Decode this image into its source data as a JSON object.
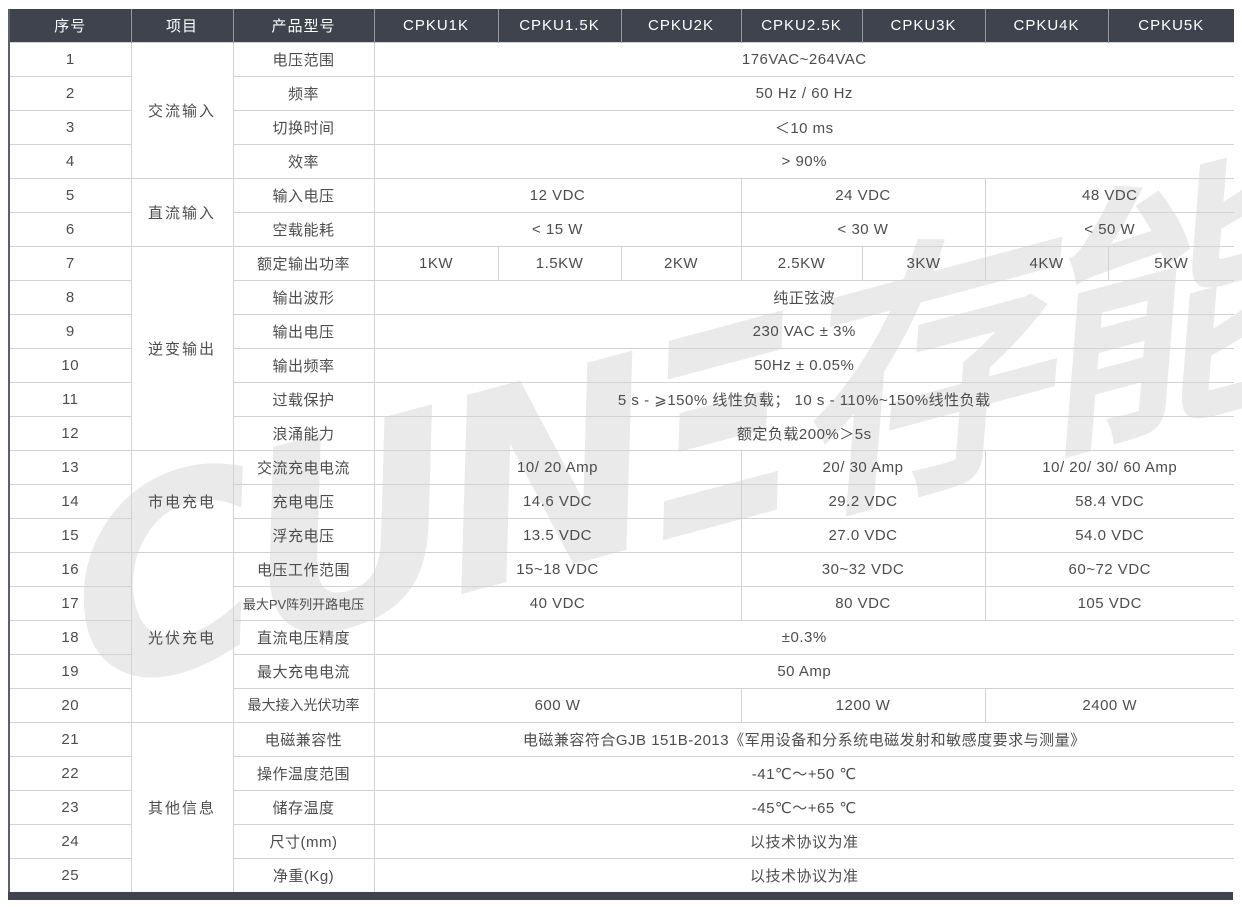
{
  "watermark": {
    "text": "CUNΞ存能"
  },
  "colors": {
    "header_bg": "#3e434e",
    "bottom_bar": "#3e434e",
    "grid_line": "#d2d2d2",
    "body_text": "#4d4d4d",
    "header_text": "#ffffff",
    "watermark": "#eaeaea"
  },
  "table": {
    "header": [
      "序号",
      "项目",
      "产品型号",
      "CPKU1K",
      "CPKU1.5K",
      "CPKU2K",
      "CPKU2.5K",
      "CPKU3K",
      "CPKU4K",
      "CPKU5K"
    ],
    "groups": [
      {
        "label": "交流输入",
        "rows": [
          1,
          4
        ]
      },
      {
        "label": "直流输入",
        "rows": [
          5,
          6
        ]
      },
      {
        "label": "逆变输出",
        "rows": [
          7,
          12
        ]
      },
      {
        "label": "市电充电",
        "rows": [
          13,
          15
        ]
      },
      {
        "label": "光伏充电",
        "rows": [
          16,
          20
        ]
      },
      {
        "label": "其他信息",
        "rows": [
          21,
          25
        ]
      }
    ],
    "rows": [
      {
        "num": "1",
        "item": "电压范围",
        "values": [
          {
            "text": "176VAC~264VAC",
            "span": 7
          }
        ]
      },
      {
        "num": "2",
        "item": "频率",
        "values": [
          {
            "text": "50 Hz / 60 Hz",
            "span": 7
          }
        ]
      },
      {
        "num": "3",
        "item": "切换时间",
        "values": [
          {
            "text": "＜10 ms",
            "span": 7
          }
        ]
      },
      {
        "num": "4",
        "item": "效率",
        "values": [
          {
            "text": "> 90%",
            "span": 7
          }
        ]
      },
      {
        "num": "5",
        "item": "输入电压",
        "values": [
          {
            "text": "12 VDC",
            "span": 3
          },
          {
            "text": "24 VDC",
            "span": 2
          },
          {
            "text": "48 VDC",
            "span": 2
          }
        ]
      },
      {
        "num": "6",
        "item": "空载能耗",
        "values": [
          {
            "text": "< 15 W",
            "span": 3
          },
          {
            "text": "< 30 W",
            "span": 2
          },
          {
            "text": "< 50 W",
            "span": 2
          }
        ]
      },
      {
        "num": "7",
        "item": "额定输出功率",
        "values": [
          {
            "text": "1KW",
            "span": 1
          },
          {
            "text": "1.5KW",
            "span": 1
          },
          {
            "text": "2KW",
            "span": 1
          },
          {
            "text": "2.5KW",
            "span": 1
          },
          {
            "text": "3KW",
            "span": 1
          },
          {
            "text": "4KW",
            "span": 1
          },
          {
            "text": "5KW",
            "span": 1
          }
        ]
      },
      {
        "num": "8",
        "item": "输出波形",
        "values": [
          {
            "text": "纯正弦波",
            "span": 7
          }
        ]
      },
      {
        "num": "9",
        "item": "输出电压",
        "values": [
          {
            "text": "230 VAC ± 3%",
            "span": 7
          }
        ]
      },
      {
        "num": "10",
        "item": "输出频率",
        "values": [
          {
            "text": "50Hz ± 0.05%",
            "span": 7
          }
        ]
      },
      {
        "num": "11",
        "item": "过载保护",
        "values": [
          {
            "text": "5 s - ⩾150% 线性负载；  10 s - 110%~150%线性负载",
            "span": 7
          }
        ]
      },
      {
        "num": "12",
        "item": "浪涌能力",
        "values": [
          {
            "text": "额定负载200%＞5s",
            "span": 7
          }
        ]
      },
      {
        "num": "13",
        "item": "交流充电电流",
        "values": [
          {
            "text": "10/ 20 Amp",
            "span": 3
          },
          {
            "text": "20/ 30 Amp",
            "span": 2
          },
          {
            "text": "10/ 20/ 30/ 60 Amp",
            "span": 2
          }
        ]
      },
      {
        "num": "14",
        "item": "充电电压",
        "values": [
          {
            "text": "14.6 VDC",
            "span": 3
          },
          {
            "text": "29.2 VDC",
            "span": 2
          },
          {
            "text": "58.4 VDC",
            "span": 2
          }
        ]
      },
      {
        "num": "15",
        "item": "浮充电压",
        "values": [
          {
            "text": "13.5 VDC",
            "span": 3
          },
          {
            "text": "27.0 VDC",
            "span": 2
          },
          {
            "text": "54.0 VDC",
            "span": 2
          }
        ]
      },
      {
        "num": "16",
        "item": "电压工作范围",
        "values": [
          {
            "text": "15~18 VDC",
            "span": 3
          },
          {
            "text": "30~32 VDC",
            "span": 2
          },
          {
            "text": "60~72 VDC",
            "span": 2
          }
        ]
      },
      {
        "num": "17",
        "item": "最大PV阵列开路电压",
        "values": [
          {
            "text": "40 VDC",
            "span": 3
          },
          {
            "text": "80 VDC",
            "span": 2
          },
          {
            "text": "105 VDC",
            "span": 2
          }
        ]
      },
      {
        "num": "18",
        "item": "直流电压精度",
        "values": [
          {
            "text": "±0.3%",
            "span": 7
          }
        ]
      },
      {
        "num": "19",
        "item": "最大充电电流",
        "values": [
          {
            "text": "50 Amp",
            "span": 7
          }
        ]
      },
      {
        "num": "20",
        "item": "最大接入光伏功率",
        "values": [
          {
            "text": "600 W",
            "span": 3
          },
          {
            "text": "1200 W",
            "span": 2
          },
          {
            "text": "2400 W",
            "span": 2
          }
        ]
      },
      {
        "num": "21",
        "item": "电磁兼容性",
        "values": [
          {
            "text": "电磁兼容符合GJB 151B-2013《军用设备和分系统电磁发射和敏感度要求与测量》",
            "span": 7
          }
        ]
      },
      {
        "num": "22",
        "item": "操作温度范围",
        "values": [
          {
            "text": "-41℃～+50 ℃",
            "span": 7
          }
        ]
      },
      {
        "num": "23",
        "item": "储存温度",
        "values": [
          {
            "text": "-45℃～+65 ℃",
            "span": 7
          }
        ]
      },
      {
        "num": "24",
        "item": "尺寸(mm)",
        "values": [
          {
            "text": "以技术协议为准",
            "span": 7
          }
        ]
      },
      {
        "num": "25",
        "item": "净重(Kg)",
        "values": [
          {
            "text": "以技术协议为准",
            "span": 7
          }
        ]
      }
    ]
  }
}
